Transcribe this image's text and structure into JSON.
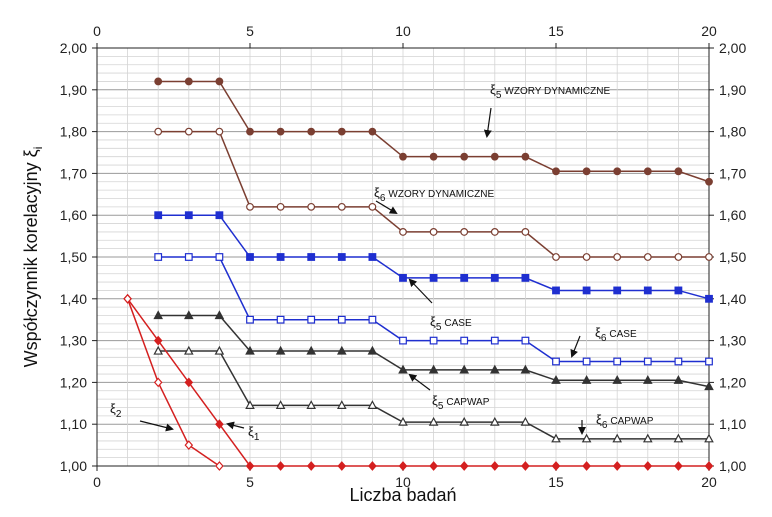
{
  "chart_data": {
    "type": "line",
    "xlabel": "Liczba badań",
    "ylabel": "Współczynnik korelacyjny ξ",
    "ylabel_sub": "i",
    "xlim": [
      0,
      20
    ],
    "ylim": [
      1.0,
      2.0
    ],
    "x_ticks": [
      0,
      5,
      10,
      15,
      20
    ],
    "x_tick_labels": [
      "0",
      "5",
      "10",
      "15",
      "20"
    ],
    "y_ticks": [
      1.0,
      1.1,
      1.2,
      1.3,
      1.4,
      1.5,
      1.6,
      1.7,
      1.8,
      1.9,
      2.0
    ],
    "y_tick_labels": [
      "1,00",
      "1,10",
      "1,20",
      "1,30",
      "1,40",
      "1,50",
      "1,60",
      "1,70",
      "1,80",
      "1,90",
      "2,00"
    ],
    "grid": true,
    "minor_grid_step_y": 0.02,
    "series": [
      {
        "id": "xi5-wzory",
        "name": "ξ5 WZORY DYNAMICZNE",
        "color": "#7b3f32",
        "marker": "circle-filled",
        "x": [
          2,
          3,
          4,
          5,
          6,
          7,
          8,
          9,
          10,
          11,
          12,
          13,
          14,
          15,
          16,
          17,
          18,
          19,
          20
        ],
        "values": [
          1.92,
          1.92,
          1.92,
          1.8,
          1.8,
          1.8,
          1.8,
          1.8,
          1.74,
          1.74,
          1.74,
          1.74,
          1.74,
          1.705,
          1.705,
          1.705,
          1.705,
          1.705,
          1.68
        ]
      },
      {
        "id": "xi6-wzory",
        "name": "ξ6 WZORY DYNAMICZNE",
        "color": "#7b3f32",
        "marker": "circle-open",
        "x": [
          2,
          3,
          4,
          5,
          6,
          7,
          8,
          9,
          10,
          11,
          12,
          13,
          14,
          15,
          16,
          17,
          18,
          19,
          20
        ],
        "values": [
          1.8,
          1.8,
          1.8,
          1.62,
          1.62,
          1.62,
          1.62,
          1.62,
          1.56,
          1.56,
          1.56,
          1.56,
          1.56,
          1.5,
          1.5,
          1.5,
          1.5,
          1.5,
          1.5
        ]
      },
      {
        "id": "xi5-case",
        "name": "ξ5 CASE",
        "color": "#1f2fd0",
        "marker": "square-filled",
        "x": [
          2,
          3,
          4,
          5,
          6,
          7,
          8,
          9,
          10,
          11,
          12,
          13,
          14,
          15,
          16,
          17,
          18,
          19,
          20
        ],
        "values": [
          1.6,
          1.6,
          1.6,
          1.5,
          1.5,
          1.5,
          1.5,
          1.5,
          1.45,
          1.45,
          1.45,
          1.45,
          1.45,
          1.42,
          1.42,
          1.42,
          1.42,
          1.42,
          1.4
        ]
      },
      {
        "id": "xi6-case",
        "name": "ξ6 CASE",
        "color": "#1f2fd0",
        "marker": "square-open",
        "x": [
          2,
          3,
          4,
          5,
          6,
          7,
          8,
          9,
          10,
          11,
          12,
          13,
          14,
          15,
          16,
          17,
          18,
          19,
          20
        ],
        "values": [
          1.5,
          1.5,
          1.5,
          1.35,
          1.35,
          1.35,
          1.35,
          1.35,
          1.3,
          1.3,
          1.3,
          1.3,
          1.3,
          1.25,
          1.25,
          1.25,
          1.25,
          1.25,
          1.25
        ]
      },
      {
        "id": "xi5-capwap",
        "name": "ξ5 CAPWAP",
        "color": "#333333",
        "marker": "triangle-filled",
        "x": [
          2,
          3,
          4,
          5,
          6,
          7,
          8,
          9,
          10,
          11,
          12,
          13,
          14,
          15,
          16,
          17,
          18,
          19,
          20
        ],
        "values": [
          1.36,
          1.36,
          1.36,
          1.275,
          1.275,
          1.275,
          1.275,
          1.275,
          1.23,
          1.23,
          1.23,
          1.23,
          1.23,
          1.205,
          1.205,
          1.205,
          1.205,
          1.205,
          1.19
        ]
      },
      {
        "id": "xi6-capwap",
        "name": "ξ6 CAPWAP",
        "color": "#333333",
        "marker": "triangle-open",
        "x": [
          2,
          3,
          4,
          5,
          6,
          7,
          8,
          9,
          10,
          11,
          12,
          13,
          14,
          15,
          16,
          17,
          18,
          19,
          20
        ],
        "values": [
          1.275,
          1.275,
          1.275,
          1.145,
          1.145,
          1.145,
          1.145,
          1.145,
          1.105,
          1.105,
          1.105,
          1.105,
          1.105,
          1.065,
          1.065,
          1.065,
          1.065,
          1.065,
          1.065
        ]
      },
      {
        "id": "xi1",
        "name": "ξ1",
        "color": "#d42020",
        "marker": "diamond-filled",
        "x": [
          1,
          2,
          3,
          4,
          5,
          6,
          7,
          8,
          9,
          10,
          11,
          12,
          13,
          14,
          15,
          16,
          17,
          18,
          19,
          20
        ],
        "values": [
          1.4,
          1.3,
          1.2,
          1.1,
          1.0,
          1.0,
          1.0,
          1.0,
          1.0,
          1.0,
          1.0,
          1.0,
          1.0,
          1.0,
          1.0,
          1.0,
          1.0,
          1.0,
          1.0,
          1.0
        ]
      },
      {
        "id": "xi2",
        "name": "ξ2",
        "color": "#d42020",
        "marker": "diamond-open",
        "x": [
          1,
          2,
          3,
          4
        ],
        "values": [
          1.4,
          1.2,
          1.05,
          1.0
        ]
      }
    ],
    "annotations": [
      {
        "id": "xi5-wzory",
        "symbol": "ξ",
        "sub": "5",
        "tag": "WZORY DYNAMICZNE"
      },
      {
        "id": "xi6-wzory",
        "symbol": "ξ",
        "sub": "6",
        "tag": "WZORY DYNAMICZNE"
      },
      {
        "id": "xi5-case",
        "symbol": "ξ",
        "sub": "5",
        "tag": "CASE"
      },
      {
        "id": "xi6-case",
        "symbol": "ξ",
        "sub": "6",
        "tag": "CASE"
      },
      {
        "id": "xi5-capwap",
        "symbol": "ξ",
        "sub": "5",
        "tag": "CAPWAP"
      },
      {
        "id": "xi6-capwap",
        "symbol": "ξ",
        "sub": "6",
        "tag": "CAPWAP"
      },
      {
        "id": "xi1",
        "symbol": "ξ",
        "sub": "1",
        "tag": ""
      },
      {
        "id": "xi2",
        "symbol": "ξ",
        "sub": "2",
        "tag": ""
      }
    ]
  }
}
